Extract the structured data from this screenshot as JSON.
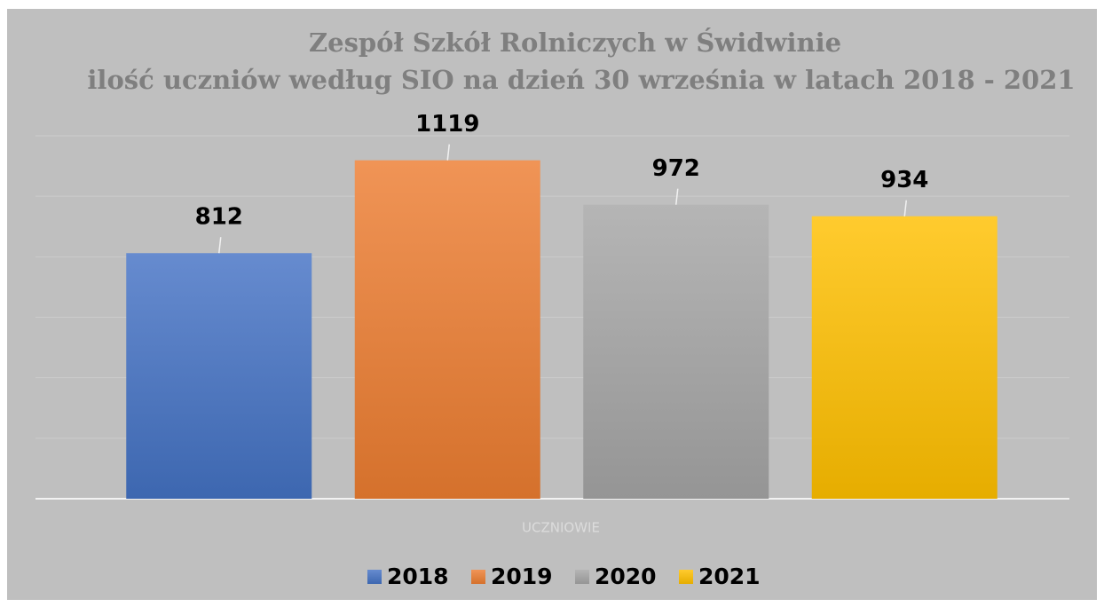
{
  "chart_data": {
    "type": "bar",
    "title": "Zespół Szkół Rolniczych w Świdwinie",
    "subtitle": "ilość uczniów według SIO na dzień 30 września w latach 2018 - 2021",
    "categories": [
      "UCZNIOWIE"
    ],
    "series": [
      {
        "name": "2018",
        "color": "#4472c4",
        "values": [
          812
        ]
      },
      {
        "name": "2019",
        "color": "#ed7d31",
        "values": [
          1119
        ]
      },
      {
        "name": "2020",
        "color": "#a5a5a5",
        "values": [
          972
        ]
      },
      {
        "name": "2021",
        "color": "#ffc000",
        "values": [
          934
        ]
      }
    ],
    "ylim": [
      0,
      1200
    ],
    "yticks": [
      0,
      200,
      400,
      600,
      800,
      1000,
      1200
    ],
    "grid": true,
    "legend": "bottom"
  }
}
